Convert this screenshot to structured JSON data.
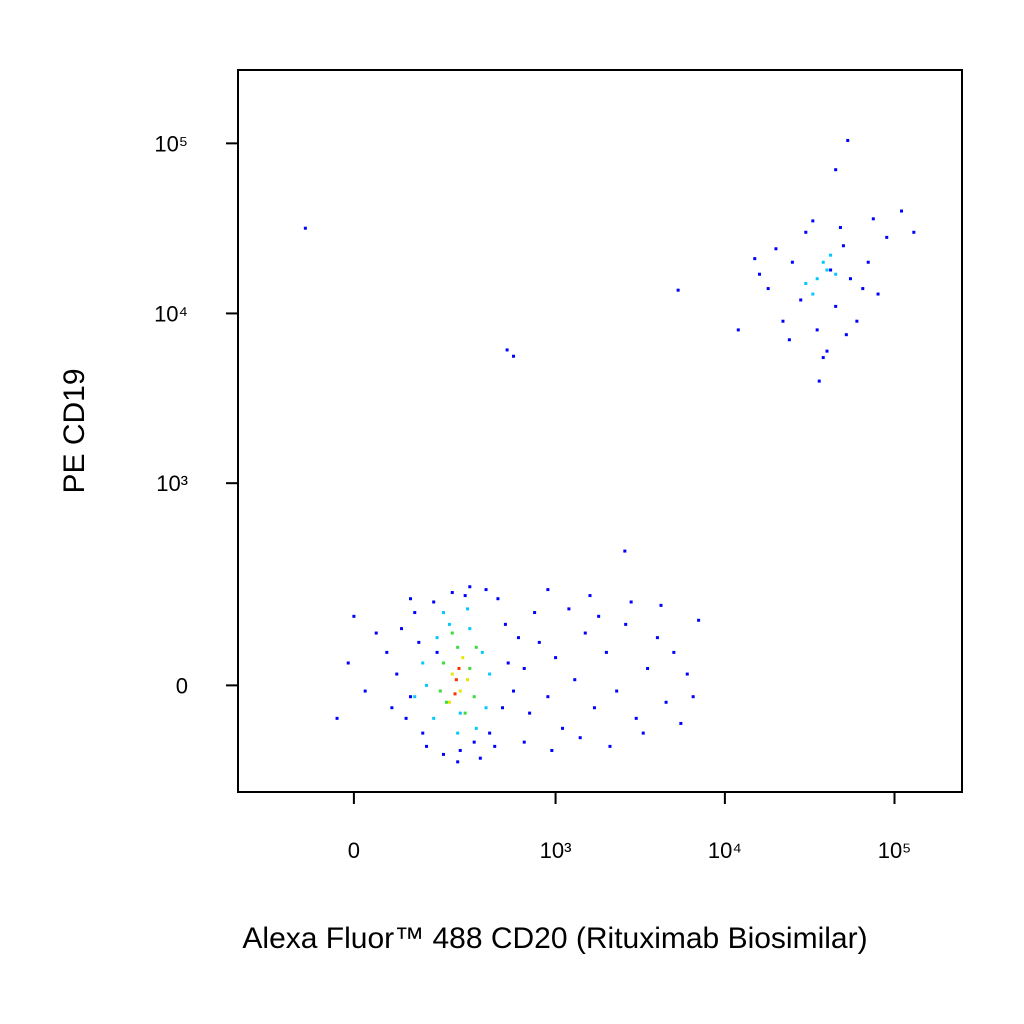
{
  "chart_data": {
    "type": "scatter",
    "x_label": "Alexa Fluor™ 488 CD20 (Rituximab Biosimilar)",
    "y_label": "PE CD19",
    "xscale": {
      "type": "asinh",
      "cofactor": 130
    },
    "yscale": {
      "type": "asinh",
      "cofactor": 130
    },
    "xlim": [
      -300,
      250000
    ],
    "ylim": [
      -260,
      270000
    ],
    "xticks": [
      0,
      {
        "value": 1000,
        "label": "10³"
      },
      {
        "value": 10000,
        "label": "10⁴"
      },
      {
        "value": 100000,
        "label": "10⁵"
      }
    ],
    "yticks": [
      0,
      {
        "value": 1000,
        "label": "10³"
      },
      {
        "value": 10000,
        "label": "10⁴"
      },
      {
        "value": 100000,
        "label": "10⁵"
      }
    ],
    "series": [
      {
        "color": "#0000ff",
        "x": [
          80,
          100,
          120,
          90,
          150,
          200,
          260,
          320,
          400,
          480,
          520,
          500,
          450,
          380,
          300,
          230,
          170,
          130,
          110,
          140,
          60,
          70,
          40,
          20,
          -10,
          -30,
          0,
          350,
          250,
          180,
          560,
          600,
          430,
          280,
          110,
          650,
          700,
          800,
          900,
          1000,
          1100,
          1300,
          1500,
          1700,
          2000,
          2300,
          2600,
          3000,
          3500,
          4000,
          4500,
          5000,
          5500,
          6000,
          7000,
          750,
          1200,
          1800,
          2800,
          4200,
          650,
          950,
          1400,
          2100,
          3300,
          6500,
          1600,
          900,
          18000,
          22000,
          25000,
          30000,
          35000,
          40000,
          45000,
          50000,
          55000,
          60000,
          70000,
          80000,
          90000,
          20000,
          28000,
          33000,
          38000,
          48000,
          65000,
          24000,
          42000,
          16000,
          75000,
          52000,
          36000,
          110000,
          130000,
          12000,
          15000,
          -92,
          512,
          560,
          5300,
          2570,
          53000,
          45000
        ],
        "values": [
          20,
          -60,
          150,
          110,
          -120,
          -140,
          -130,
          -110,
          -90,
          -40,
          40,
          120,
          190,
          220,
          230,
          210,
          180,
          80,
          -20,
          -90,
          60,
          -40,
          100,
          -10,
          40,
          -60,
          140,
          -150,
          -160,
          60,
          -10,
          90,
          -120,
          200,
          190,
          30,
          -50,
          80,
          -20,
          50,
          -80,
          10,
          100,
          -40,
          60,
          -10,
          120,
          -60,
          30,
          90,
          -30,
          60,
          -70,
          20,
          130,
          150,
          160,
          140,
          180,
          170,
          -110,
          -130,
          -100,
          -120,
          -90,
          -20,
          200,
          220,
          14000,
          9000,
          20000,
          30000,
          8000,
          6000,
          11000,
          25000,
          16000,
          9000,
          20000,
          13000,
          28000,
          24000,
          12000,
          35000,
          5500,
          32000,
          14000,
          7000,
          18000,
          17000,
          36000,
          7500,
          4000,
          40000,
          30000,
          8000,
          21000,
          31700,
          6100,
          5600,
          13700,
          390,
          104000,
          70000
        ]
      },
      {
        "color": "#00c8ff",
        "x": [
          150,
          180,
          220,
          300,
          360,
          380,
          330,
          250,
          170,
          140,
          200,
          290,
          400,
          120,
          260,
          35000,
          40000,
          30000,
          38000,
          45000,
          33000,
          42000
        ],
        "values": [
          0,
          90,
          120,
          110,
          60,
          -40,
          -80,
          -90,
          -60,
          40,
          150,
          160,
          20,
          -20,
          -50,
          16000,
          18000,
          15000,
          20000,
          17000,
          13000,
          22000
        ]
      },
      {
        "color": "#3cdc3c",
        "x": [
          200,
          250,
          300,
          320,
          280,
          210,
          230,
          190,
          330
        ],
        "values": [
          40,
          70,
          30,
          -20,
          -50,
          -30,
          100,
          -10,
          70
        ]
      },
      {
        "color": "#e6e600",
        "x": [
          230,
          260,
          270,
          220,
          290
        ],
        "values": [
          20,
          -10,
          50,
          -30,
          10
        ]
      },
      {
        "color": "#ff3000",
        "x": [
          245,
          255,
          240
        ],
        "values": [
          10,
          30,
          -15
        ]
      }
    ]
  }
}
